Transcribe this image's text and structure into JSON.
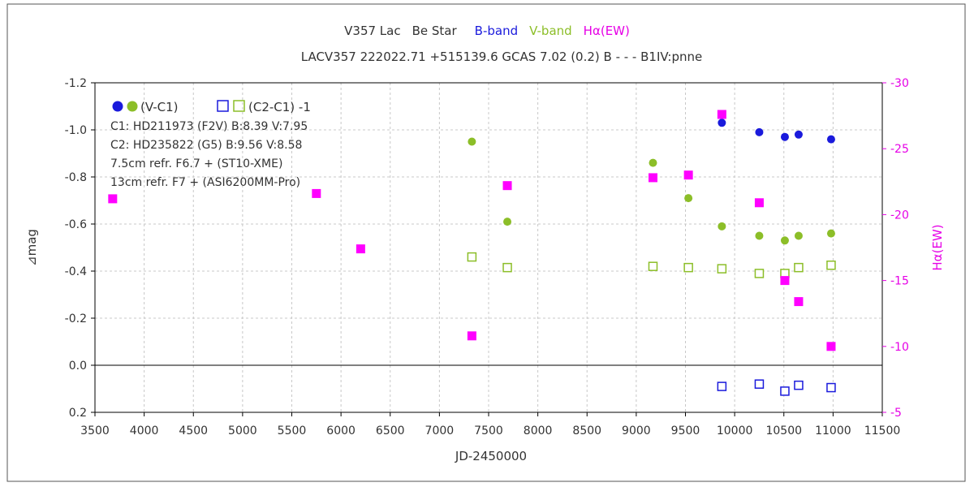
{
  "chart_data": {
    "type": "scatter",
    "title_parts": [
      {
        "text": "V357 Lac",
        "color": "#333333"
      },
      {
        "text": "Be Star",
        "color": "#333333"
      },
      {
        "text": "B-band",
        "color": "#1a1adc"
      },
      {
        "text": "V-band",
        "color": "#8cbe28"
      },
      {
        "text": "Hα(EW)",
        "color": "#e600e6"
      }
    ],
    "subtitle": "LACV357 222022.71 +515139.6 GCAS 7.02 (0.2) B - - - B1IV:pnne",
    "xlabel": "JD-2450000",
    "ylabel": "⊿mag",
    "y2label": "Hα(EW)",
    "xlim": [
      3500,
      11500
    ],
    "ylim": [
      0.2,
      -1.2
    ],
    "y2lim": [
      -5,
      -30
    ],
    "xticks": [
      "3500",
      "4000",
      "4500",
      "5000",
      "5500",
      "6000",
      "6500",
      "7000",
      "7500",
      "8000",
      "8500",
      "9000",
      "9500",
      "10000",
      "10500",
      "11000",
      "11500"
    ],
    "yticks": [
      "-1.2",
      "-1.0",
      "-0.8",
      "-0.6",
      "-0.4",
      "-0.2",
      "0.0",
      "0.2"
    ],
    "y2ticks": [
      "-30",
      "-25",
      "-20",
      "-15",
      "-10",
      "-5"
    ],
    "grid": true,
    "legend": {
      "position": "top-left",
      "filled_label": "(V-C1)",
      "open_label": "(C2-C1) -1",
      "lines": [
        "C1: HD211973 (F2V)  B:8.39  V:7.95",
        "C2: HD235822 (G5)  B:9.56  V:8.58",
        "7.5cm refr. F6.7  +  (ST10-XME)",
        "13cm refr. F7  +  (ASI6200MM-Pro)"
      ]
    },
    "colors": {
      "b": "#1a1adc",
      "v": "#8cbe28",
      "ha": "#ff00ff"
    },
    "series": [
      {
        "name": "B-band (V-C1)",
        "axis": "y",
        "marker": "filled-circle",
        "color": "#1a1adc",
        "x": [
          9870,
          10250,
          10510,
          10650,
          10980
        ],
        "y": [
          -1.03,
          -0.99,
          -0.97,
          -0.98,
          -0.96
        ]
      },
      {
        "name": "V-band (V-C1)",
        "axis": "y",
        "marker": "filled-circle",
        "color": "#8cbe28",
        "x": [
          7330,
          7690,
          9170,
          9530,
          9870,
          10250,
          10510,
          10650,
          10980
        ],
        "y": [
          -0.95,
          -0.61,
          -0.86,
          -0.71,
          -0.59,
          -0.55,
          -0.53,
          -0.55,
          -0.56
        ]
      },
      {
        "name": "B-band (C2-C1)-1",
        "axis": "y",
        "marker": "open-square",
        "color": "#1a1adc",
        "x": [
          9870,
          10250,
          10510,
          10650,
          10980
        ],
        "y": [
          0.09,
          0.08,
          0.11,
          0.085,
          0.095
        ]
      },
      {
        "name": "V-band (C2-C1)-1",
        "axis": "y",
        "marker": "open-square",
        "color": "#8cbe28",
        "x": [
          7330,
          7690,
          9170,
          9530,
          9870,
          10250,
          10510,
          10650,
          10980
        ],
        "y": [
          -0.46,
          -0.415,
          -0.42,
          -0.415,
          -0.41,
          -0.39,
          -0.39,
          -0.415,
          -0.425
        ]
      },
      {
        "name": "Hα (EW)",
        "axis": "y2",
        "marker": "filled-square",
        "color": "#ff00ff",
        "x": [
          3680,
          5750,
          6200,
          7330,
          7690,
          9170,
          9530,
          9870,
          10250,
          10510,
          10650,
          10980
        ],
        "y": [
          -21.2,
          -21.6,
          -17.4,
          -10.8,
          -22.2,
          -22.8,
          -23.0,
          -27.6,
          -20.9,
          -15.0,
          -13.4,
          -10.0
        ]
      }
    ]
  }
}
